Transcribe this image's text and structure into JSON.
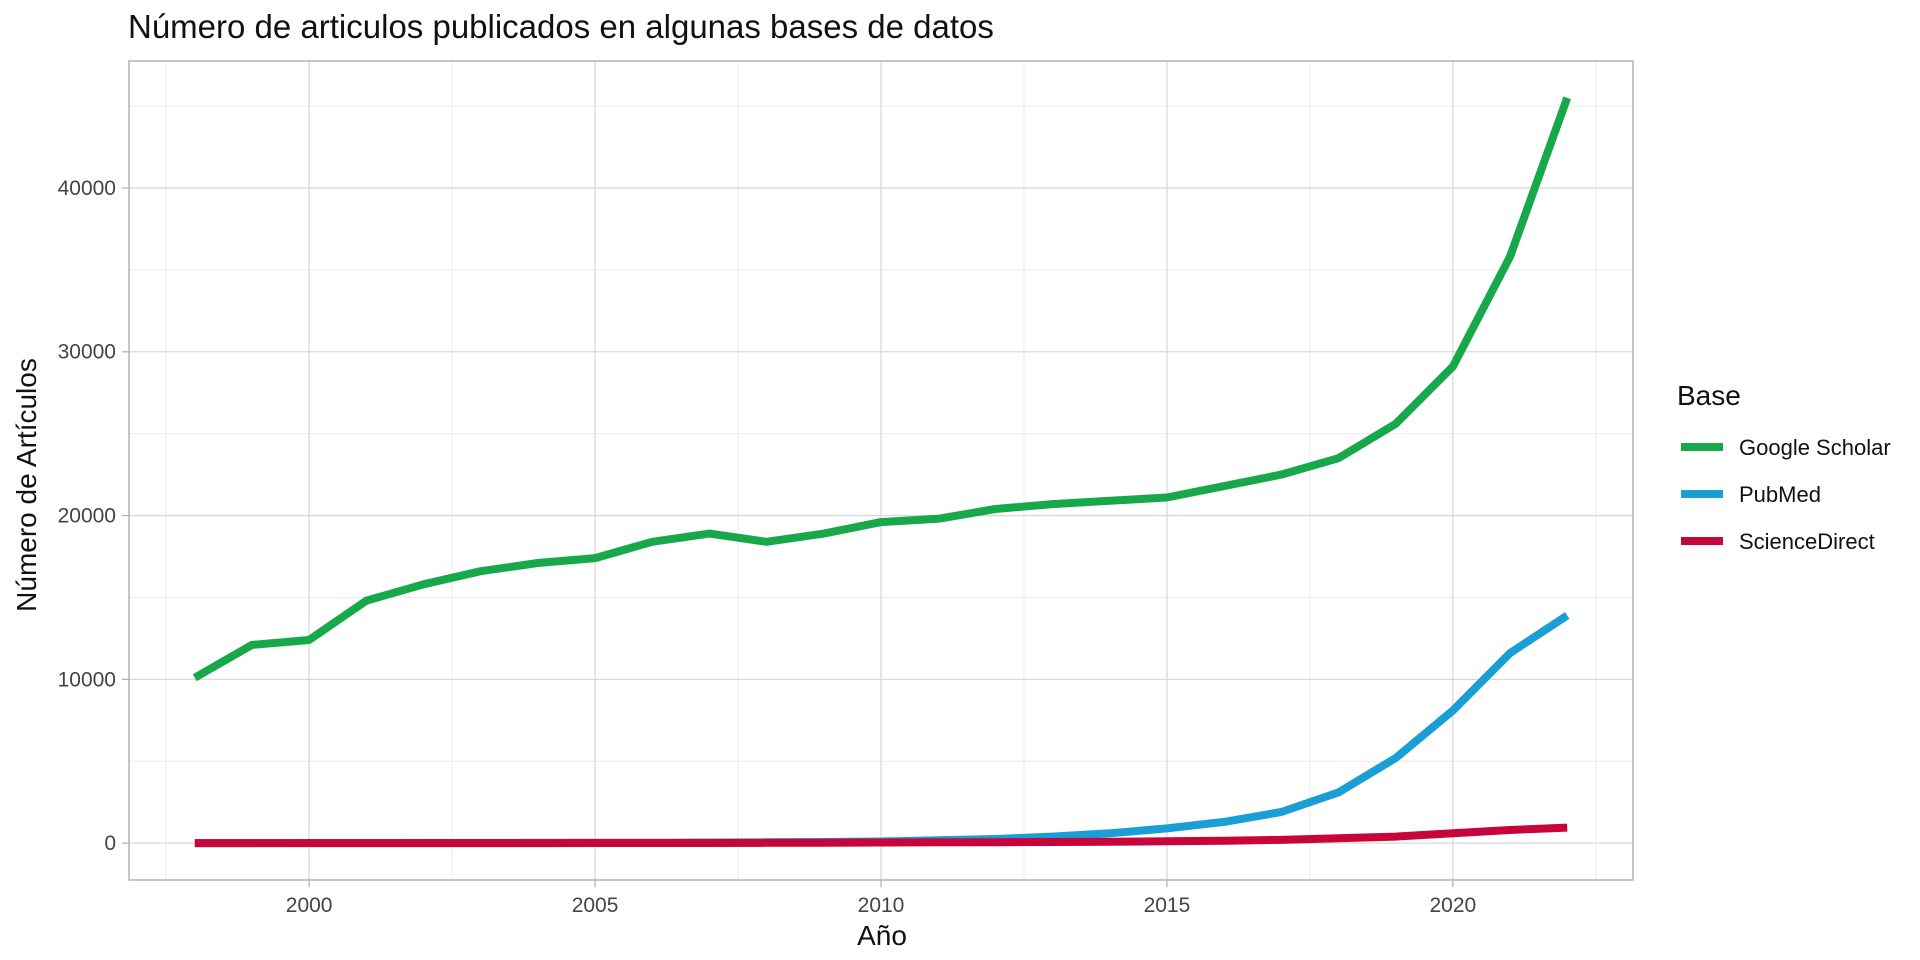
{
  "chart_data": {
    "type": "line",
    "title": "Número de articulos publicados en algunas bases de datos",
    "xlabel": "Año",
    "ylabel": "Número de Artículos",
    "xlim": [
      1996.85,
      2023.15
    ],
    "ylim": [
      -2250,
      47750
    ],
    "x_ticks": [
      2000,
      2005,
      2010,
      2015,
      2020
    ],
    "y_ticks": [
      0,
      10000,
      20000,
      30000,
      40000
    ],
    "grid": true,
    "legend": {
      "title": "Base",
      "position": "right"
    },
    "x": [
      1998,
      1999,
      2000,
      2001,
      2002,
      2003,
      2004,
      2005,
      2006,
      2007,
      2008,
      2009,
      2010,
      2011,
      2012,
      2013,
      2014,
      2015,
      2016,
      2017,
      2018,
      2019,
      2020,
      2021,
      2022
    ],
    "series": [
      {
        "name": "Google Scholar",
        "color": "#17a84a",
        "values": [
          10100,
          12100,
          12400,
          14800,
          15800,
          16600,
          17100,
          17400,
          18400,
          18900,
          18400,
          18900,
          19600,
          19800,
          20400,
          20700,
          20900,
          21100,
          21800,
          22500,
          23500,
          25600,
          29100,
          35800,
          45500
        ]
      },
      {
        "name": "PubMed",
        "color": "#1a9ed6",
        "values": [
          5,
          5,
          8,
          10,
          15,
          15,
          20,
          25,
          30,
          40,
          50,
          70,
          100,
          180,
          250,
          400,
          600,
          900,
          1300,
          1900,
          3100,
          5200,
          8100,
          11600,
          13900
        ]
      },
      {
        "name": "ScienceDirect",
        "color": "#c8053a",
        "values": [
          5,
          5,
          5,
          5,
          5,
          5,
          5,
          10,
          10,
          10,
          20,
          30,
          40,
          50,
          60,
          70,
          90,
          110,
          150,
          200,
          300,
          400,
          600,
          800,
          950
        ]
      }
    ]
  }
}
